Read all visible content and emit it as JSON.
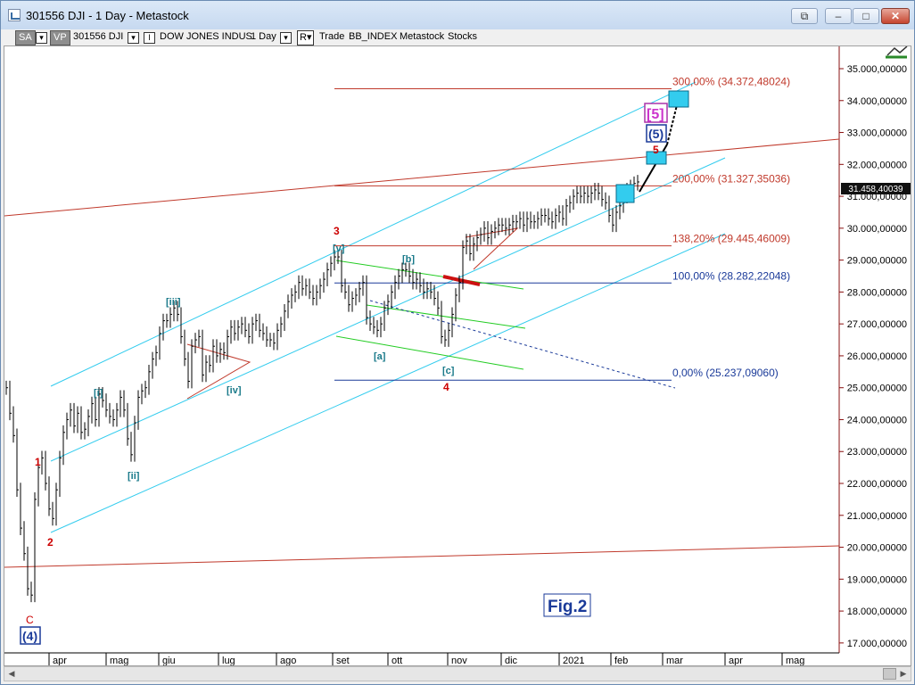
{
  "window": {
    "title": "301556 DJI - 1 Day - Metastock",
    "buttons": {
      "restore": "⧉",
      "minimize": "–",
      "maximize": "□",
      "close": "✕"
    }
  },
  "toolbar": {
    "sa": "SA",
    "vp": "VP",
    "symbol": "301556 DJI",
    "name": "DOW JONES INDUS",
    "period": "1 Day",
    "r": "R",
    "trade": "Trade",
    "index": "BB_INDEX",
    "app": "Metastock",
    "stocks": "Stocks"
  },
  "chart_data": {
    "type": "bar",
    "y_axis": {
      "labels": [
        "35.000,00000",
        "34.000,00000",
        "33.000,00000",
        "32.000,00000",
        "31.000,00000",
        "30.000,00000",
        "29.000,00000",
        "28.000,00000",
        "27.000,00000",
        "26.000,00000",
        "25.000,00000",
        "24.000,00000",
        "23.000,00000",
        "22.000,00000",
        "21.000,00000",
        "20.000,00000",
        "19.000,00000",
        "18.000,00000",
        "17.000,00000"
      ],
      "range": [
        17000,
        35500
      ]
    },
    "x_axis": {
      "labels": [
        "apr",
        "mag",
        "giu",
        "lug",
        "ago",
        "set",
        "ott",
        "nov",
        "dic",
        "2021",
        "feb",
        "mar",
        "apr",
        "mag"
      ]
    },
    "last_price": "31.458,40039",
    "fib_levels": [
      {
        "label": "300,00% (34.372,48024)",
        "value": 34372.48
      },
      {
        "label": "200,00% (31.327,35036)",
        "value": 31327.35
      },
      {
        "label": "138,20% (29.445,46009)",
        "value": 29445.46
      },
      {
        "label": "100,00% (28.282,22048)",
        "value": 28282.22
      },
      {
        "label": "0,00% (25.237,09060)",
        "value": 25237.09
      }
    ],
    "wave_labels": {
      "w1": "1",
      "w2": "2",
      "w3": "3",
      "w4": "4",
      "w5": "5",
      "c": "C",
      "w4_paren": "(4)",
      "w5_paren": "(5)",
      "w5_bracket": "[5]",
      "i": "[i]",
      "ii": "[ii]",
      "iii": "[iii]",
      "iv": "[iv]",
      "v": "[v]",
      "a": "[a]",
      "b": "[b]",
      "cc": "[c]"
    },
    "figure_label": "Fig.2",
    "colors": {
      "price": "#000000",
      "channel": "#33ccee",
      "fib": "#c0392b",
      "wave_blue": "#1a3a99",
      "wave_red": "#cc0000",
      "wave_teal": "#1a7a8a",
      "green": "#22cc22"
    }
  }
}
